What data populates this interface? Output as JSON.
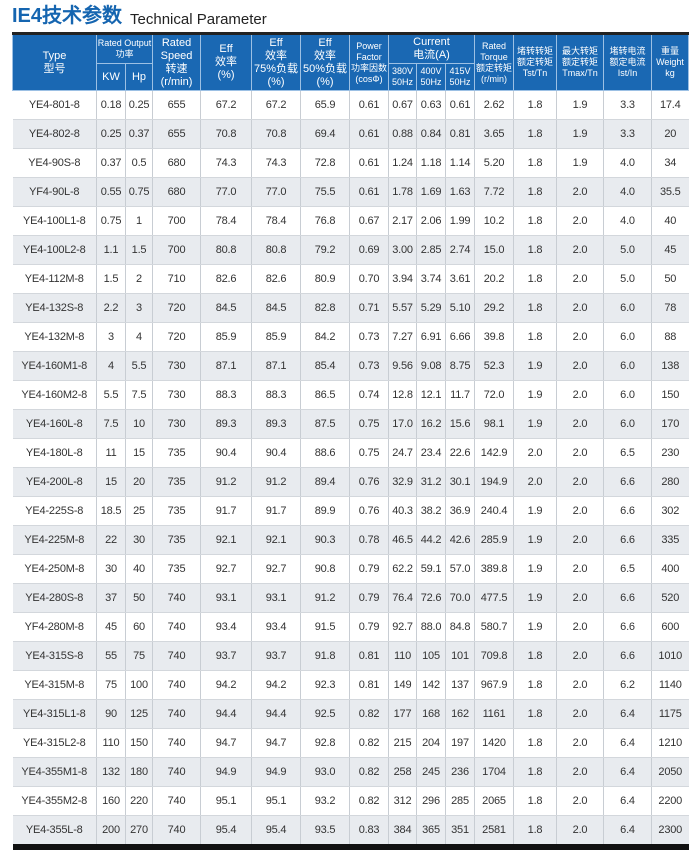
{
  "title": {
    "cn": "IE4技术参数",
    "en": "Technical Parameter"
  },
  "header": {
    "type": [
      "Type",
      "型号"
    ],
    "rated_output": [
      "Rated Output",
      "功率"
    ],
    "kw": "KW",
    "hp": "Hp",
    "speed": [
      "Rated",
      "Speed",
      "转速",
      "(r/min)"
    ],
    "eff": [
      "Eff",
      "效率",
      "(%)"
    ],
    "eff75": [
      "Eff",
      "效率",
      "75%负载",
      "(%)"
    ],
    "eff50": [
      "Eff",
      "效率",
      "50%负载",
      "(%)"
    ],
    "pf": [
      "Power",
      "Factor",
      "功率因数",
      "(cosΦ)"
    ],
    "current": [
      "Current",
      "电流(A)"
    ],
    "v380": [
      "380V",
      "50Hz"
    ],
    "v400": [
      "400V",
      "50Hz"
    ],
    "v415": [
      "415V",
      "50Hz"
    ],
    "torque": [
      "Rated",
      "Torque",
      "额定转矩",
      "(r/min)"
    ],
    "tst": [
      "堵转转矩",
      "额定转矩",
      "Tst/Tn"
    ],
    "tmax": [
      "最大转矩",
      "额定转矩",
      "Tmax/Tn"
    ],
    "ist": [
      "堵转电流",
      "额定电流",
      "Ist/In"
    ],
    "weight": [
      "重量",
      "Weight",
      "kg"
    ]
  },
  "rows": [
    [
      "YE4-801-8",
      "0.18",
      "0.25",
      "655",
      "67.2",
      "67.2",
      "65.9",
      "0.61",
      "0.67",
      "0.63",
      "0.61",
      "2.62",
      "1.8",
      "1.9",
      "3.3",
      "17.4"
    ],
    [
      "YE4-802-8",
      "0.25",
      "0.37",
      "655",
      "70.8",
      "70.8",
      "69.4",
      "0.61",
      "0.88",
      "0.84",
      "0.81",
      "3.65",
      "1.8",
      "1.9",
      "3.3",
      "20"
    ],
    [
      "YE4-90S-8",
      "0.37",
      "0.5",
      "680",
      "74.3",
      "74.3",
      "72.8",
      "0.61",
      "1.24",
      "1.18",
      "1.14",
      "5.20",
      "1.8",
      "1.9",
      "4.0",
      "34"
    ],
    [
      "YF4-90L-8",
      "0.55",
      "0.75",
      "680",
      "77.0",
      "77.0",
      "75.5",
      "0.61",
      "1.78",
      "1.69",
      "1.63",
      "7.72",
      "1.8",
      "2.0",
      "4.0",
      "35.5"
    ],
    [
      "YE4-100L1-8",
      "0.75",
      "1",
      "700",
      "78.4",
      "78.4",
      "76.8",
      "0.67",
      "2.17",
      "2.06",
      "1.99",
      "10.2",
      "1.8",
      "2.0",
      "4.0",
      "40"
    ],
    [
      "YE4-100L2-8",
      "1.1",
      "1.5",
      "700",
      "80.8",
      "80.8",
      "79.2",
      "0.69",
      "3.00",
      "2.85",
      "2.74",
      "15.0",
      "1.8",
      "2.0",
      "5.0",
      "45"
    ],
    [
      "YE4-112M-8",
      "1.5",
      "2",
      "710",
      "82.6",
      "82.6",
      "80.9",
      "0.70",
      "3.94",
      "3.74",
      "3.61",
      "20.2",
      "1.8",
      "2.0",
      "5.0",
      "50"
    ],
    [
      "YE4-132S-8",
      "2.2",
      "3",
      "720",
      "84.5",
      "84.5",
      "82.8",
      "0.71",
      "5.57",
      "5.29",
      "5.10",
      "29.2",
      "1.8",
      "2.0",
      "6.0",
      "78"
    ],
    [
      "YE4-132M-8",
      "3",
      "4",
      "720",
      "85.9",
      "85.9",
      "84.2",
      "0.73",
      "7.27",
      "6.91",
      "6.66",
      "39.8",
      "1.8",
      "2.0",
      "6.0",
      "88"
    ],
    [
      "YE4-160M1-8",
      "4",
      "5.5",
      "730",
      "87.1",
      "87.1",
      "85.4",
      "0.73",
      "9.56",
      "9.08",
      "8.75",
      "52.3",
      "1.9",
      "2.0",
      "6.0",
      "138"
    ],
    [
      "YE4-160M2-8",
      "5.5",
      "7.5",
      "730",
      "88.3",
      "88.3",
      "86.5",
      "0.74",
      "12.8",
      "12.1",
      "11.7",
      "72.0",
      "1.9",
      "2.0",
      "6.0",
      "150"
    ],
    [
      "YE4-160L-8",
      "7.5",
      "10",
      "730",
      "89.3",
      "89.3",
      "87.5",
      "0.75",
      "17.0",
      "16.2",
      "15.6",
      "98.1",
      "1.9",
      "2.0",
      "6.0",
      "170"
    ],
    [
      "YE4-180L-8",
      "11",
      "15",
      "735",
      "90.4",
      "90.4",
      "88.6",
      "0.75",
      "24.7",
      "23.4",
      "22.6",
      "142.9",
      "2.0",
      "2.0",
      "6.5",
      "230"
    ],
    [
      "YE4-200L-8",
      "15",
      "20",
      "735",
      "91.2",
      "91.2",
      "89.4",
      "0.76",
      "32.9",
      "31.2",
      "30.1",
      "194.9",
      "2.0",
      "2.0",
      "6.6",
      "280"
    ],
    [
      "YE4-225S-8",
      "18.5",
      "25",
      "735",
      "91.7",
      "91.7",
      "89.9",
      "0.76",
      "40.3",
      "38.2",
      "36.9",
      "240.4",
      "1.9",
      "2.0",
      "6.6",
      "302"
    ],
    [
      "YE4-225M-8",
      "22",
      "30",
      "735",
      "92.1",
      "92.1",
      "90.3",
      "0.78",
      "46.5",
      "44.2",
      "42.6",
      "285.9",
      "1.9",
      "2.0",
      "6.6",
      "335"
    ],
    [
      "YE4-250M-8",
      "30",
      "40",
      "735",
      "92.7",
      "92.7",
      "90.8",
      "0.79",
      "62.2",
      "59.1",
      "57.0",
      "389.8",
      "1.9",
      "2.0",
      "6.5",
      "400"
    ],
    [
      "YE4-280S-8",
      "37",
      "50",
      "740",
      "93.1",
      "93.1",
      "91.2",
      "0.79",
      "76.4",
      "72.6",
      "70.0",
      "477.5",
      "1.9",
      "2.0",
      "6.6",
      "520"
    ],
    [
      "YF4-280M-8",
      "45",
      "60",
      "740",
      "93.4",
      "93.4",
      "91.5",
      "0.79",
      "92.7",
      "88.0",
      "84.8",
      "580.7",
      "1.9",
      "2.0",
      "6.6",
      "600"
    ],
    [
      "YE4-315S-8",
      "55",
      "75",
      "740",
      "93.7",
      "93.7",
      "91.8",
      "0.81",
      "110",
      "105",
      "101",
      "709.8",
      "1.8",
      "2.0",
      "6.6",
      "1010"
    ],
    [
      "YE4-315M-8",
      "75",
      "100",
      "740",
      "94.2",
      "94.2",
      "92.3",
      "0.81",
      "149",
      "142",
      "137",
      "967.9",
      "1.8",
      "2.0",
      "6.2",
      "1140"
    ],
    [
      "YE4-315L1-8",
      "90",
      "125",
      "740",
      "94.4",
      "94.4",
      "92.5",
      "0.82",
      "177",
      "168",
      "162",
      "1161",
      "1.8",
      "2.0",
      "6.4",
      "1175"
    ],
    [
      "YE4-315L2-8",
      "110",
      "150",
      "740",
      "94.7",
      "94.7",
      "92.8",
      "0.82",
      "215",
      "204",
      "197",
      "1420",
      "1.8",
      "2.0",
      "6.4",
      "1210"
    ],
    [
      "YE4-355M1-8",
      "132",
      "180",
      "740",
      "94.9",
      "94.9",
      "93.0",
      "0.82",
      "258",
      "245",
      "236",
      "1704",
      "1.8",
      "2.0",
      "6.4",
      "2050"
    ],
    [
      "YE4-355M2-8",
      "160",
      "220",
      "740",
      "95.1",
      "95.1",
      "93.2",
      "0.82",
      "312",
      "296",
      "285",
      "2065",
      "1.8",
      "2.0",
      "6.4",
      "2200"
    ],
    [
      "YE4-355L-8",
      "200",
      "270",
      "740",
      "95.4",
      "95.4",
      "93.5",
      "0.83",
      "384",
      "365",
      "351",
      "2581",
      "1.8",
      "2.0",
      "6.4",
      "2300"
    ]
  ]
}
